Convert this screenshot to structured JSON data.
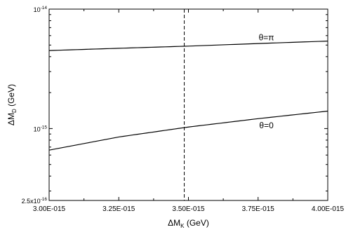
{
  "chart_data": {
    "type": "line",
    "xlabel": {
      "main": "ΔM",
      "sub": "K",
      "unit": " (GeV)"
    },
    "ylabel": {
      "main": "ΔM",
      "sub": "D",
      "unit": " (GeV)"
    },
    "x_scale": "linear",
    "y_scale": "log",
    "xlim": [
      3e-15,
      4e-15
    ],
    "ylim": [
      2.5e-16,
      1e-14
    ],
    "x_ticks": [
      {
        "value": 3e-15,
        "label": "3.00E-015"
      },
      {
        "value": 3.25e-15,
        "label": "3.25E-015"
      },
      {
        "value": 3.5e-15,
        "label": "3.50E-015"
      },
      {
        "value": 3.75e-15,
        "label": "3.75E-015"
      },
      {
        "value": 4e-15,
        "label": "4.00E-015"
      }
    ],
    "y_ticks": [
      {
        "value": 2.5e-16,
        "mant": "2.5x10",
        "exp": "-16"
      },
      {
        "value": 1e-15,
        "mant": "10",
        "exp": "-15"
      },
      {
        "value": 1e-14,
        "mant": "10",
        "exp": "-14"
      }
    ],
    "vline": {
      "x": 3.485e-15,
      "style": "dashed"
    },
    "series": [
      {
        "name": "θ=π",
        "x": [
          3e-15,
          3.25e-15,
          3.5e-15,
          3.75e-15,
          4e-15
        ],
        "y": [
          4.5e-15,
          4.7e-15,
          4.9e-15,
          5.15e-15,
          5.4e-15
        ],
        "label_at": 3.8e-15
      },
      {
        "name": "θ=0",
        "x": [
          3e-15,
          3.25e-15,
          3.5e-15,
          3.75e-15,
          4e-15
        ],
        "y": [
          6.6e-16,
          8.5e-16,
          1.03e-15,
          1.21e-15,
          1.4e-15
        ],
        "label_at": 3.8e-15
      }
    ],
    "grid": false,
    "legend": "none"
  }
}
